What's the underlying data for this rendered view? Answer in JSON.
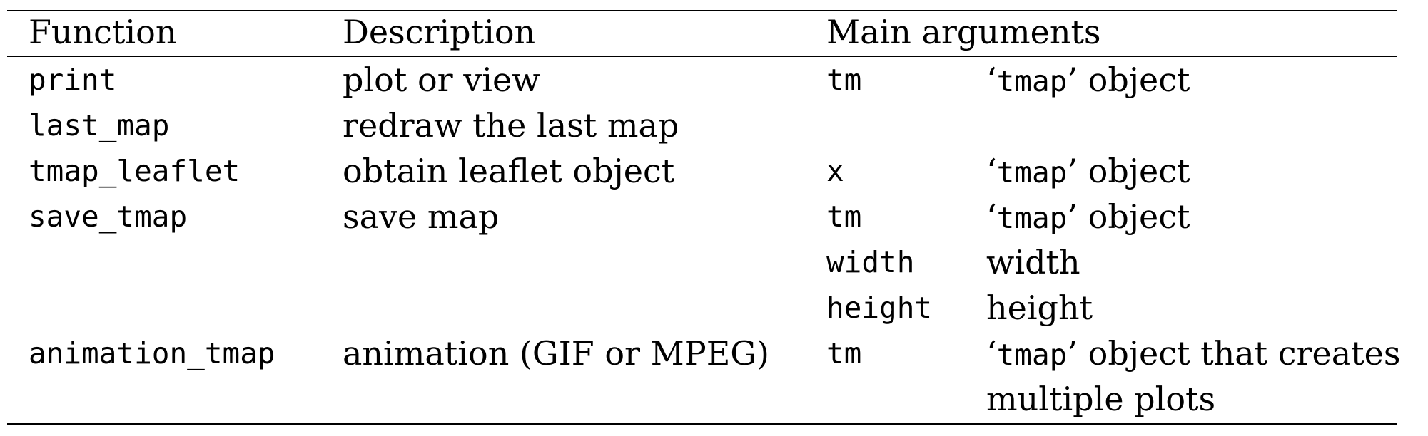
{
  "header": {
    "function": "Function",
    "description": "Description",
    "main_arguments": "Main arguments"
  },
  "rows": [
    {
      "function": "print",
      "description": "plot or view",
      "arg": "tm",
      "arg_desc_pre": "‘",
      "arg_desc_code": "tmap",
      "arg_desc_post": "’ object"
    },
    {
      "function": "last_map",
      "description": "redraw the last map",
      "arg": "",
      "arg_desc_pre": "",
      "arg_desc_code": "",
      "arg_desc_post": ""
    },
    {
      "function": "tmap_leaflet",
      "description": "obtain leaflet object",
      "arg": "x",
      "arg_desc_pre": "‘",
      "arg_desc_code": "tmap",
      "arg_desc_post": "’ object"
    },
    {
      "function": "save_tmap",
      "description": "save map",
      "arg": "tm",
      "arg_desc_pre": "‘",
      "arg_desc_code": "tmap",
      "arg_desc_post": "’ object"
    },
    {
      "function": "",
      "description": "",
      "arg": "width",
      "arg_desc_pre": "width",
      "arg_desc_code": "",
      "arg_desc_post": ""
    },
    {
      "function": "",
      "description": "",
      "arg": "height",
      "arg_desc_pre": "height",
      "arg_desc_code": "",
      "arg_desc_post": ""
    },
    {
      "function": "animation_tmap",
      "description": "animation (GIF or MPEG)",
      "arg": "tm",
      "arg_desc_pre": "‘",
      "arg_desc_code": "tmap",
      "arg_desc_post": "’ object that creates"
    },
    {
      "function": "",
      "description": "",
      "arg": "",
      "arg_desc_pre": "multiple plots",
      "arg_desc_code": "",
      "arg_desc_post": ""
    }
  ]
}
